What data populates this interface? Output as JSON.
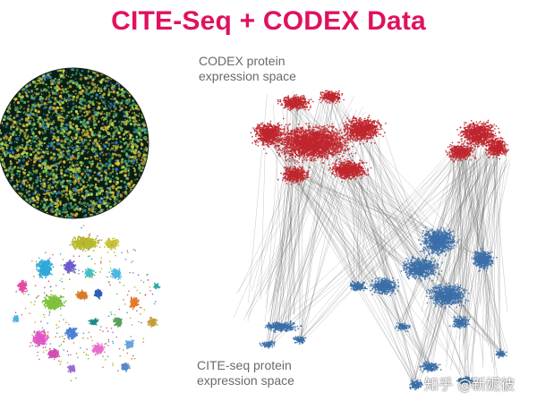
{
  "title": "CITE-Seq + CODEX Data",
  "labels": {
    "codex_line1": "CODEX protein",
    "codex_line2": "expression space",
    "cite_line1": "CITE-seq protein",
    "cite_line2": "expression space"
  },
  "watermark": "知乎 @新妮彼",
  "colors": {
    "title": "#e0115f",
    "codex_points": "#c0262e",
    "cite_points": "#3b6fa8",
    "connectors": "#555555"
  }
}
